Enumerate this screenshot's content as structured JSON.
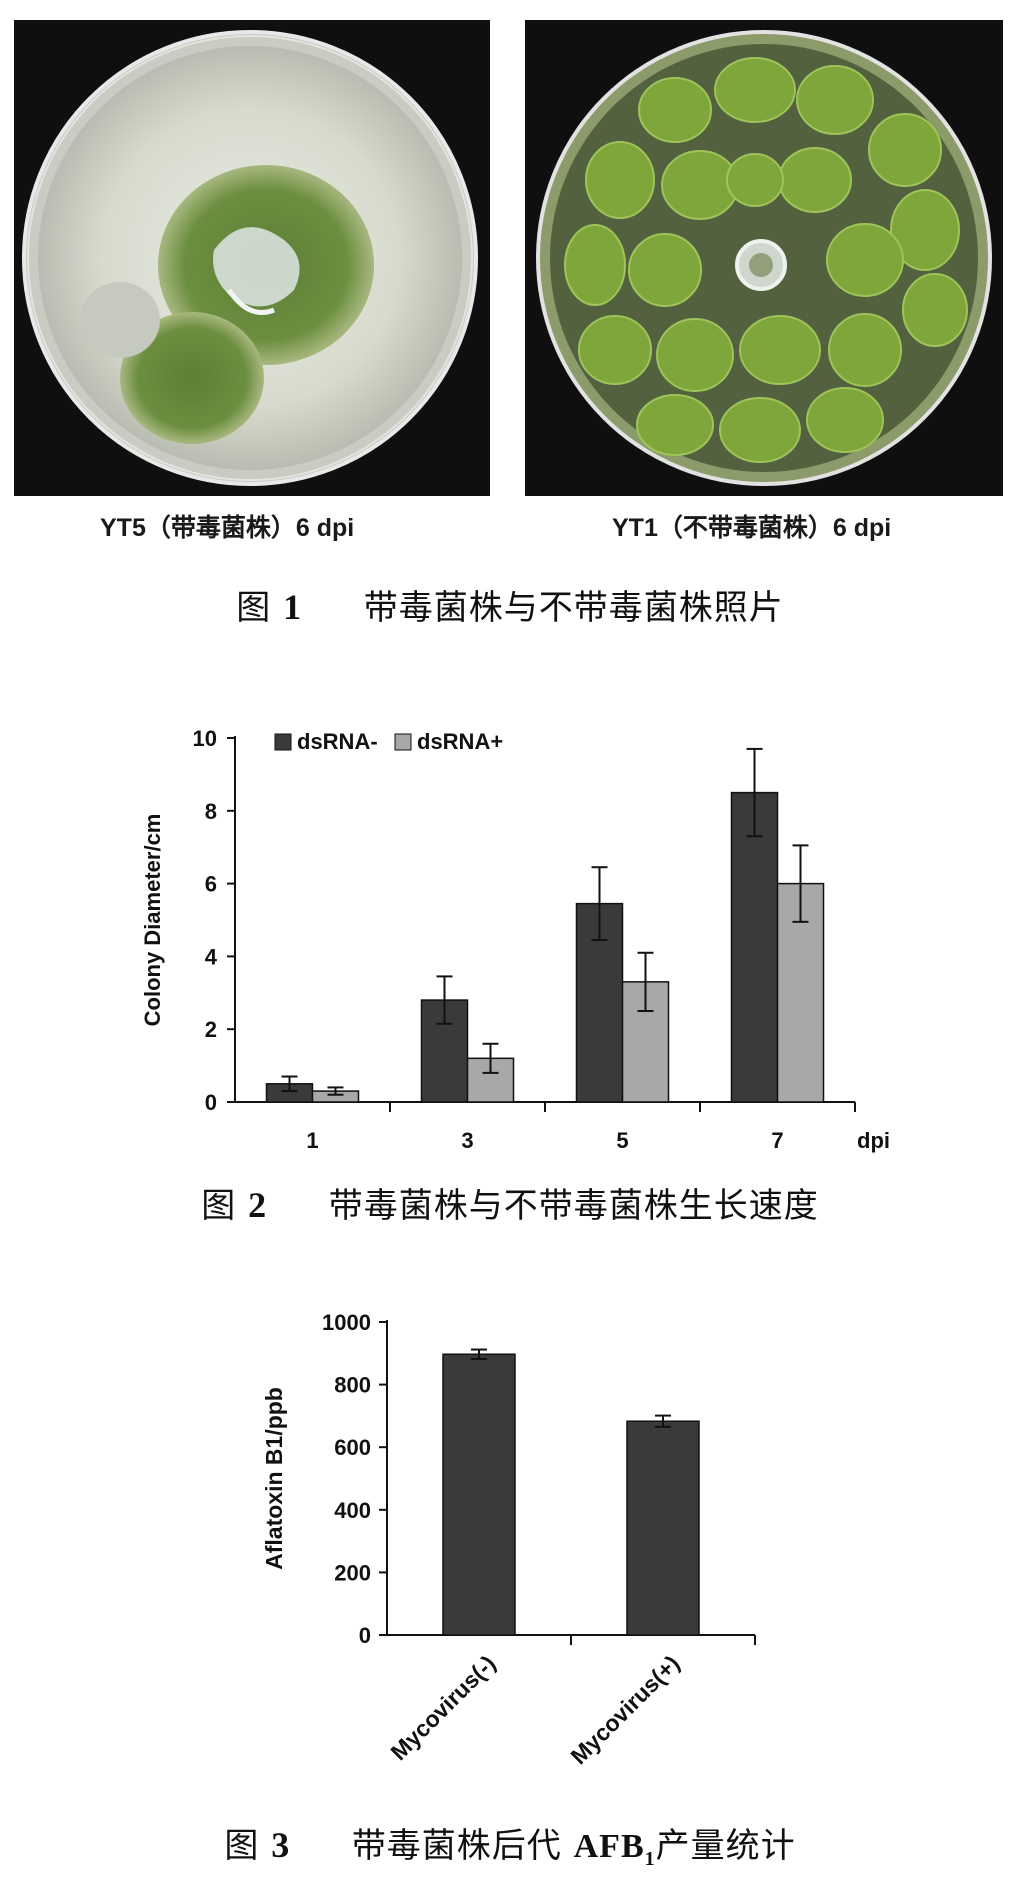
{
  "figure1": {
    "left_label": "YT5（带毒菌株）6 dpi",
    "right_label": "YT1（不带毒菌株）6 dpi",
    "caption_prefix": "图",
    "caption_number": "1",
    "caption_text": "带毒菌株与不带毒菌株照片"
  },
  "figure2": {
    "caption_prefix": "图",
    "caption_number": "2",
    "caption_text": "带毒菌株与不带毒菌株生长速度"
  },
  "figure3": {
    "caption_prefix": "图",
    "caption_number": "3",
    "caption_text_a": "带毒菌株后代",
    "caption_afb": "AFB",
    "caption_sub": "1",
    "caption_text_b": "产量统计"
  },
  "chart_data": [
    {
      "type": "bar",
      "title": "",
      "xlabel": "dpi",
      "ylabel": "Colony Diameter/cm",
      "categories": [
        "1",
        "3",
        "5",
        "7"
      ],
      "ylim": [
        0,
        10
      ],
      "yticks": [
        "0",
        "2",
        "4",
        "6",
        "8",
        "10"
      ],
      "legend_position": "top-left",
      "series": [
        {
          "name": "dsRNA-",
          "color": "#3a3a3a",
          "values": [
            0.5,
            2.8,
            5.45,
            8.5
          ],
          "errors": [
            0.2,
            0.65,
            1.0,
            1.2
          ]
        },
        {
          "name": "dsRNA+",
          "color": "#a8a8a8",
          "values": [
            0.3,
            1.2,
            3.3,
            6.0
          ],
          "errors": [
            0.1,
            0.4,
            0.8,
            1.05
          ]
        }
      ]
    },
    {
      "type": "bar",
      "title": "",
      "xlabel": "",
      "ylabel": "Aflatoxin B1/ppb",
      "categories": [
        "Mycovirus(-)",
        "Mycovirus(+)"
      ],
      "ylim": [
        0,
        1000
      ],
      "yticks": [
        "0",
        "200",
        "400",
        "600",
        "800",
        "1000"
      ],
      "series": [
        {
          "color": "#3a3a3a",
          "values": [
            897,
            683
          ],
          "errors": [
            15,
            18
          ]
        }
      ]
    }
  ]
}
